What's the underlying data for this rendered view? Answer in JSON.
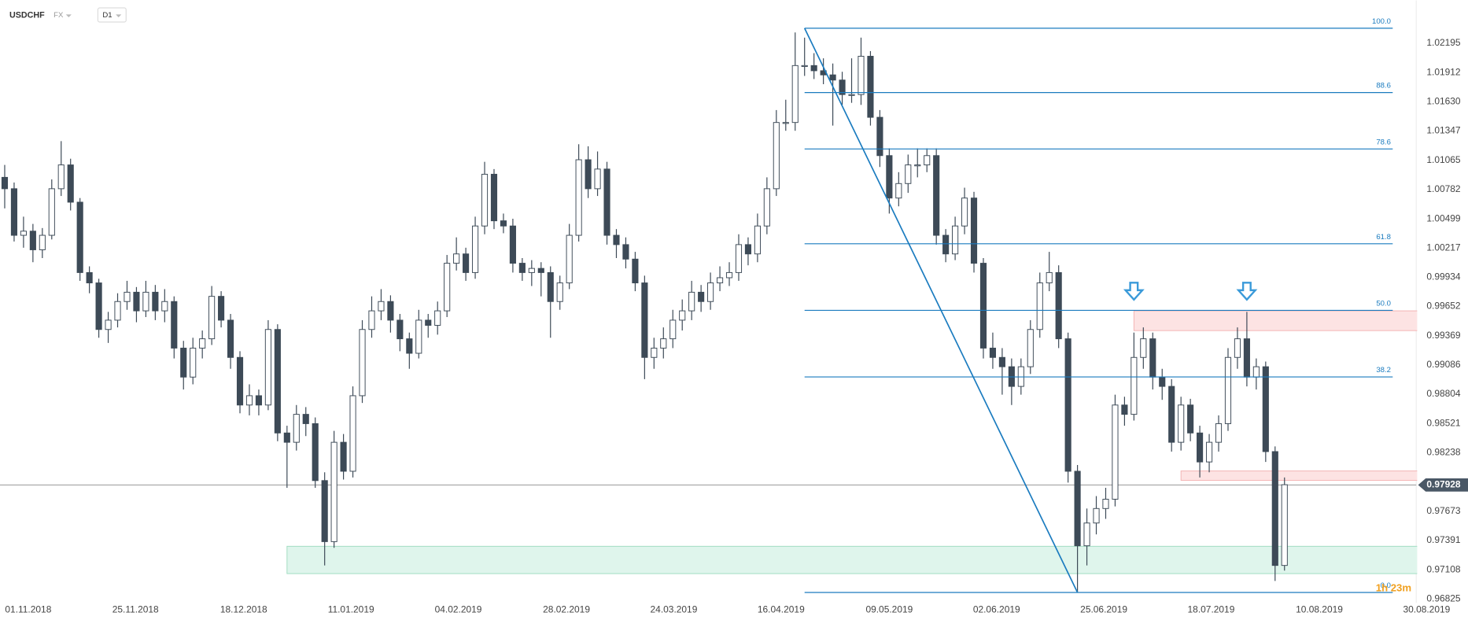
{
  "header": {
    "symbol": "USDCHF",
    "market": "FX",
    "interval": "D1"
  },
  "chart_data": {
    "type": "candlestick",
    "ohlc": [
      [
        1.009,
        1.0102,
        1.006,
        1.0079
      ],
      [
        1.0079,
        1.0085,
        1.0028,
        1.0034
      ],
      [
        1.0034,
        1.0052,
        1.0022,
        1.0038
      ],
      [
        1.0038,
        1.0045,
        1.0008,
        1.002
      ],
      [
        1.002,
        1.0041,
        1.0012,
        1.0034
      ],
      [
        1.0034,
        1.0088,
        1.003,
        1.0079
      ],
      [
        1.0079,
        1.0125,
        1.0072,
        1.0102
      ],
      [
        1.0102,
        1.0108,
        1.0058,
        1.0066
      ],
      [
        1.0066,
        1.007,
        0.999,
        0.9998
      ],
      [
        0.9998,
        1.0004,
        0.9978,
        0.9988
      ],
      [
        0.9988,
        0.9992,
        0.9935,
        0.9943
      ],
      [
        0.9943,
        0.996,
        0.993,
        0.9952
      ],
      [
        0.9952,
        0.9978,
        0.9945,
        0.997
      ],
      [
        0.997,
        0.999,
        0.9962,
        0.9979
      ],
      [
        0.9979,
        0.9984,
        0.995,
        0.9961
      ],
      [
        0.9961,
        0.999,
        0.9955,
        0.9979
      ],
      [
        0.9979,
        0.9986,
        0.9952,
        0.9961
      ],
      [
        0.9961,
        0.9982,
        0.995,
        0.997
      ],
      [
        0.997,
        0.9975,
        0.9915,
        0.9925
      ],
      [
        0.9925,
        0.9932,
        0.9885,
        0.9897
      ],
      [
        0.9897,
        0.9935,
        0.989,
        0.9925
      ],
      [
        0.9925,
        0.9942,
        0.9915,
        0.9934
      ],
      [
        0.9934,
        0.9985,
        0.9928,
        0.9975
      ],
      [
        0.9975,
        0.998,
        0.9945,
        0.9952
      ],
      [
        0.9952,
        0.9958,
        0.9905,
        0.9916
      ],
      [
        0.9916,
        0.9922,
        0.9862,
        0.987
      ],
      [
        0.987,
        0.989,
        0.986,
        0.9879
      ],
      [
        0.9879,
        0.9885,
        0.986,
        0.987
      ],
      [
        0.987,
        0.9952,
        0.9865,
        0.9943
      ],
      [
        0.9943,
        0.9948,
        0.9835,
        0.9843
      ],
      [
        0.9843,
        0.985,
        0.979,
        0.9834
      ],
      [
        0.9834,
        0.987,
        0.9826,
        0.9861
      ],
      [
        0.9861,
        0.9868,
        0.984,
        0.9852
      ],
      [
        0.9852,
        0.9858,
        0.979,
        0.9797
      ],
      [
        0.9797,
        0.9805,
        0.9715,
        0.9738
      ],
      [
        0.9738,
        0.9845,
        0.9732,
        0.9834
      ],
      [
        0.9834,
        0.9842,
        0.9798,
        0.9806
      ],
      [
        0.9806,
        0.9888,
        0.98,
        0.9879
      ],
      [
        0.9879,
        0.9952,
        0.9872,
        0.9943
      ],
      [
        0.9943,
        0.9975,
        0.9935,
        0.9961
      ],
      [
        0.9961,
        0.9982,
        0.9952,
        0.997
      ],
      [
        0.997,
        0.9976,
        0.994,
        0.9952
      ],
      [
        0.9952,
        0.9958,
        0.9922,
        0.9934
      ],
      [
        0.9934,
        0.994,
        0.9905,
        0.992
      ],
      [
        0.992,
        0.9962,
        0.9915,
        0.9952
      ],
      [
        0.9952,
        0.9958,
        0.9935,
        0.9947
      ],
      [
        0.9947,
        0.997,
        0.9938,
        0.9961
      ],
      [
        0.9961,
        1.0015,
        0.9955,
        1.0007
      ],
      [
        1.0007,
        1.0032,
        1.0,
        1.0016
      ],
      [
        1.0016,
        1.0022,
        0.999,
        0.9998
      ],
      [
        0.9998,
        1.0052,
        0.9992,
        1.0043
      ],
      [
        1.0043,
        1.0105,
        1.0035,
        1.0093
      ],
      [
        1.0093,
        1.0098,
        1.004,
        1.0048
      ],
      [
        1.0048,
        1.0055,
        1.0036,
        1.0043
      ],
      [
        1.0043,
        1.005,
        0.9998,
        1.0007
      ],
      [
        1.0007,
        1.0012,
        0.999,
        0.9998
      ],
      [
        0.9998,
        1.001,
        0.9985,
        1.0002
      ],
      [
        1.0002,
        1.0008,
        0.9975,
        0.9998
      ],
      [
        0.9998,
        1.0004,
        0.9935,
        0.997
      ],
      [
        0.997,
        0.9995,
        0.9962,
        0.9988
      ],
      [
        0.9988,
        1.0045,
        0.9982,
        1.0034
      ],
      [
        1.0034,
        1.0122,
        1.0028,
        1.0107
      ],
      [
        1.0107,
        1.012,
        1.007,
        1.0079
      ],
      [
        1.0079,
        1.0115,
        1.0072,
        1.0098
      ],
      [
        1.0098,
        1.0105,
        1.0025,
        1.0034
      ],
      [
        1.0034,
        1.004,
        1.0012,
        1.0025
      ],
      [
        1.0025,
        1.0032,
        1.0002,
        1.0011
      ],
      [
        1.0011,
        1.0018,
        0.998,
        0.9988
      ],
      [
        0.9988,
        0.9995,
        0.9895,
        0.9916
      ],
      [
        0.9916,
        0.9935,
        0.9905,
        0.9925
      ],
      [
        0.9925,
        0.9945,
        0.9915,
        0.9934
      ],
      [
        0.9934,
        0.9962,
        0.9925,
        0.9952
      ],
      [
        0.9952,
        0.9972,
        0.9942,
        0.9961
      ],
      [
        0.9961,
        0.999,
        0.9952,
        0.9979
      ],
      [
        0.9979,
        0.9986,
        0.996,
        0.997
      ],
      [
        0.997,
        0.9998,
        0.9962,
        0.9988
      ],
      [
        0.9988,
        1.0004,
        0.998,
        0.9993
      ],
      [
        0.9993,
        1.0008,
        0.9985,
        0.9998
      ],
      [
        0.9998,
        1.0035,
        0.999,
        1.0025
      ],
      [
        1.0025,
        1.0032,
        1.0005,
        1.0016
      ],
      [
        1.0016,
        1.0055,
        1.0008,
        1.0043
      ],
      [
        1.0043,
        1.009,
        1.0035,
        1.0079
      ],
      [
        1.0079,
        1.0155,
        1.0072,
        1.0143
      ],
      [
        1.0143,
        1.0165,
        1.0135,
        1.0143
      ],
      [
        1.0143,
        1.023,
        1.0135,
        1.0198
      ],
      [
        1.0198,
        1.0225,
        1.0188,
        1.0198
      ],
      [
        1.0198,
        1.021,
        1.0185,
        1.0193
      ],
      [
        1.0193,
        1.0205,
        1.018,
        1.0189
      ],
      [
        1.0189,
        1.02,
        1.014,
        1.0184
      ],
      [
        1.0184,
        1.0192,
        1.016,
        1.017
      ],
      [
        1.017,
        1.0205,
        1.0162,
        1.017
      ],
      [
        1.017,
        1.0225,
        1.016,
        1.0207
      ],
      [
        1.0207,
        1.0212,
        1.014,
        1.0148
      ],
      [
        1.0148,
        1.0155,
        1.01,
        1.0111
      ],
      [
        1.0111,
        1.0118,
        1.0055,
        1.007
      ],
      [
        1.007,
        1.0095,
        1.0062,
        1.0084
      ],
      [
        1.0084,
        1.0112,
        1.0075,
        1.0102
      ],
      [
        1.0102,
        1.0118,
        1.009,
        1.0102
      ],
      [
        1.0102,
        1.0118,
        1.0095,
        1.0111
      ],
      [
        1.0111,
        1.0118,
        1.0025,
        1.0034
      ],
      [
        1.0034,
        1.004,
        1.0008,
        1.0016
      ],
      [
        1.0016,
        1.0052,
        1.001,
        1.0043
      ],
      [
        1.0043,
        1.008,
        1.0035,
        1.007
      ],
      [
        1.007,
        1.0076,
        0.9998,
        1.0007
      ],
      [
        1.0007,
        1.0012,
        0.9915,
        0.9925
      ],
      [
        0.9925,
        0.994,
        0.9905,
        0.9916
      ],
      [
        0.9916,
        0.9925,
        0.988,
        0.9907
      ],
      [
        0.9907,
        0.9915,
        0.987,
        0.9888
      ],
      [
        0.9888,
        0.9915,
        0.988,
        0.9907
      ],
      [
        0.9907,
        0.9952,
        0.99,
        0.9943
      ],
      [
        0.9943,
        0.9998,
        0.9935,
        0.9988
      ],
      [
        0.9988,
        1.0018,
        0.998,
        0.9998
      ],
      [
        0.9998,
        1.0005,
        0.9925,
        0.9934
      ],
      [
        0.9934,
        0.994,
        0.9795,
        0.9806
      ],
      [
        0.9806,
        0.9812,
        0.9689,
        0.9734
      ],
      [
        0.9734,
        0.977,
        0.9715,
        0.9756
      ],
      [
        0.9756,
        0.9782,
        0.9745,
        0.977
      ],
      [
        0.977,
        0.979,
        0.976,
        0.9779
      ],
      [
        0.9779,
        0.988,
        0.9772,
        0.987
      ],
      [
        0.987,
        0.9878,
        0.985,
        0.9861
      ],
      [
        0.9861,
        0.994,
        0.9855,
        0.9916
      ],
      [
        0.9916,
        0.9945,
        0.9905,
        0.9934
      ],
      [
        0.9934,
        0.994,
        0.9885,
        0.9897
      ],
      [
        0.9897,
        0.9905,
        0.9875,
        0.9888
      ],
      [
        0.9888,
        0.9895,
        0.9825,
        0.9834
      ],
      [
        0.9834,
        0.9878,
        0.9826,
        0.987
      ],
      [
        0.987,
        0.9876,
        0.9835,
        0.9843
      ],
      [
        0.9843,
        0.985,
        0.98,
        0.9815
      ],
      [
        0.9815,
        0.9842,
        0.9805,
        0.9834
      ],
      [
        0.9834,
        0.986,
        0.9825,
        0.9852
      ],
      [
        0.9852,
        0.9925,
        0.9845,
        0.9916
      ],
      [
        0.9916,
        0.9945,
        0.9905,
        0.9934
      ],
      [
        0.9934,
        0.996,
        0.9888,
        0.9897
      ],
      [
        0.9897,
        0.9915,
        0.9885,
        0.9907
      ],
      [
        0.9907,
        0.9912,
        0.9815,
        0.9825
      ],
      [
        0.9825,
        0.983,
        0.97,
        0.9715
      ],
      [
        0.9715,
        0.98,
        0.971,
        0.9793
      ]
    ],
    "up_color": "#ffffff",
    "down_color": "#3d4a57",
    "outline_color": "#3d4a57",
    "xlim": [
      -0.5,
      155.5
    ],
    "xticks": [
      {
        "value": 2.5,
        "label": "01.11.2018"
      },
      {
        "value": 13.9,
        "label": "25.11.2018"
      },
      {
        "value": 25.4,
        "label": "18.12.2018"
      },
      {
        "value": 36.8,
        "label": "11.01.2019"
      },
      {
        "value": 48.2,
        "label": "04.02.2019"
      },
      {
        "value": 59.7,
        "label": "28.02.2019"
      },
      {
        "value": 71.1,
        "label": "24.03.2019"
      },
      {
        "value": 82.5,
        "label": "16.04.2019"
      },
      {
        "value": 94.0,
        "label": "09.05.2019"
      },
      {
        "value": 105.4,
        "label": "02.06.2019"
      },
      {
        "value": 116.8,
        "label": "25.06.2019"
      },
      {
        "value": 128.2,
        "label": "18.07.2019"
      },
      {
        "value": 139.7,
        "label": "10.08.2019"
      },
      {
        "value": 151.1,
        "label": "30.08.2019"
      }
    ],
    "ylim": [
      0.9679,
      1.0261
    ],
    "yticks": [
      1.02195,
      1.01912,
      {
        "value": 1.0163,
        "label": "1.01630"
      },
      1.01347,
      1.01065,
      1.00782,
      1.00499,
      1.00217,
      0.99934,
      0.99652,
      0.99369,
      0.99086,
      0.98804,
      0.98521,
      0.98238,
      0.97673,
      0.97391,
      0.97108,
      0.96825
    ],
    "grid": false,
    "current_price": 0.97928,
    "fibonacci": {
      "high": 1.02341,
      "low": 0.96889,
      "start": 85,
      "end": 114,
      "color": "#1a7bbf",
      "levels": [
        {
          "value": 100,
          "label": "100.0"
        },
        88.6,
        78.6,
        61.8,
        {
          "value": 50,
          "label": "50.0"
        },
        38.2,
        {
          "value": 0,
          "label": "0.0"
        }
      ]
    },
    "zones": [
      {
        "start": 30,
        "top": 0.97335,
        "bottom": 0.97071,
        "color": "#dff5ec",
        "border": "#9fdcc0"
      },
      {
        "start": 120,
        "top": 0.9961,
        "bottom": 0.99419,
        "color": "#fde3e3",
        "border": "#f3b3b3"
      },
      {
        "start": 125,
        "top": 0.98063,
        "bottom": 0.97972,
        "color": "#fde3e3",
        "border": "#f3b3b3"
      }
    ],
    "markers": [
      120,
      132
    ],
    "marker_color": "#3a9ad9",
    "countdown": "1h 23m"
  }
}
